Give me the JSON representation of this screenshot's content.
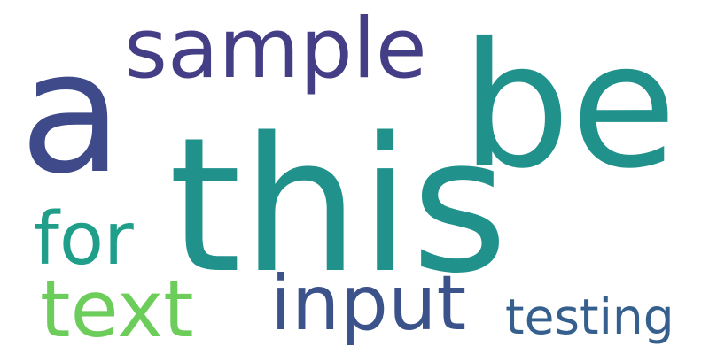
{
  "words": [
    {
      "id": "this",
      "text": "this",
      "color": "#21918c"
    },
    {
      "id": "a",
      "text": "a",
      "color": "#3e4a89"
    },
    {
      "id": "be",
      "text": "be",
      "color": "#21918c"
    },
    {
      "id": "sample",
      "text": "sample",
      "color": "#433e85"
    },
    {
      "id": "for",
      "text": "for",
      "color": "#1f9e89"
    },
    {
      "id": "text",
      "text": "text",
      "color": "#6ccd5a"
    },
    {
      "id": "input",
      "text": "input",
      "color": "#3b528b"
    },
    {
      "id": "testing",
      "text": "testing",
      "color": "#355f8d"
    }
  ]
}
